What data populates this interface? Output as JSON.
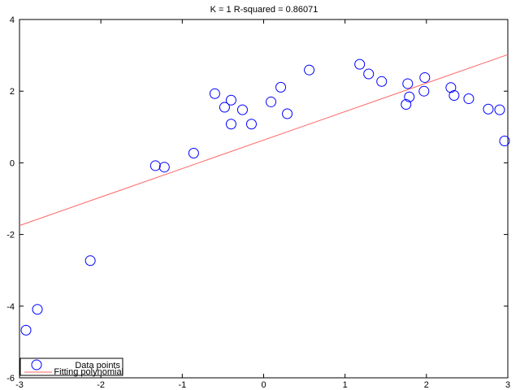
{
  "chart_data": {
    "type": "scatter",
    "title": "K = 1 R-squared = 0.86071",
    "xlabel": "",
    "ylabel": "",
    "xlim": [
      -3,
      3
    ],
    "ylim": [
      -6,
      4
    ],
    "xticks": [
      -3,
      -2,
      -1,
      0,
      1,
      2,
      3
    ],
    "yticks": [
      -6,
      -4,
      -2,
      0,
      2,
      4
    ],
    "xtick_labels": [
      "-3",
      "-2",
      "-1",
      "0",
      "1",
      "2",
      "3"
    ],
    "ytick_labels": [
      "-6",
      "-4",
      "-2",
      "0",
      "2",
      "4"
    ],
    "grid": false,
    "legend_position": "bottom-left",
    "series": [
      {
        "name": "Data points",
        "kind": "marker",
        "marker": "circle",
        "color": "#0000ff",
        "points": [
          [
            -2.92,
            -4.67
          ],
          [
            -2.78,
            -4.09
          ],
          [
            -2.13,
            -2.73
          ],
          [
            -1.33,
            -0.08
          ],
          [
            -1.22,
            -0.12
          ],
          [
            -0.86,
            0.27
          ],
          [
            -0.6,
            1.93
          ],
          [
            -0.48,
            1.55
          ],
          [
            -0.4,
            1.75
          ],
          [
            -0.4,
            1.08
          ],
          [
            -0.26,
            1.48
          ],
          [
            -0.15,
            1.08
          ],
          [
            0.09,
            1.7
          ],
          [
            0.21,
            2.11
          ],
          [
            0.29,
            1.37
          ],
          [
            0.56,
            2.59
          ],
          [
            1.18,
            2.75
          ],
          [
            1.29,
            2.48
          ],
          [
            1.45,
            2.27
          ],
          [
            1.75,
            1.63
          ],
          [
            1.77,
            2.21
          ],
          [
            1.79,
            1.84
          ],
          [
            1.97,
            2.0
          ],
          [
            1.98,
            2.38
          ],
          [
            2.3,
            2.1
          ],
          [
            2.34,
            1.88
          ],
          [
            2.52,
            1.79
          ],
          [
            2.76,
            1.5
          ],
          [
            2.9,
            1.48
          ],
          [
            2.96,
            0.61
          ]
        ]
      },
      {
        "name": "Fitting polynomial",
        "kind": "line",
        "color": "#ff6666",
        "points": [
          [
            -3,
            -1.75
          ],
          [
            3,
            3.02
          ]
        ]
      }
    ]
  }
}
